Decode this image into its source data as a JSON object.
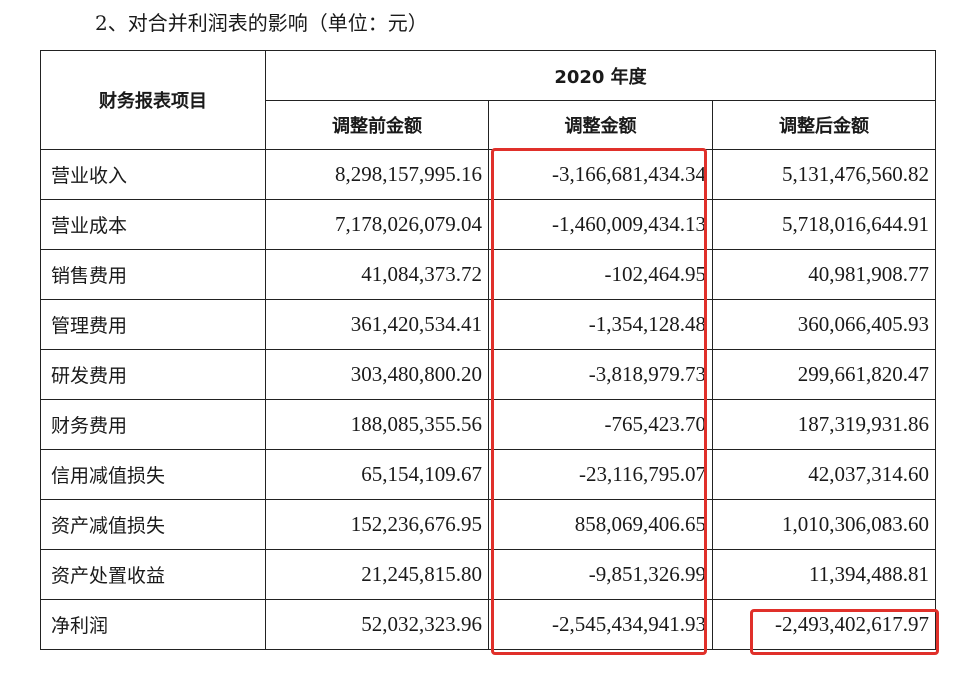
{
  "heading": "2、对合并利润表的影响（单位：元）",
  "table": {
    "item_header": "财务报表项目",
    "year_header": "2020 年度",
    "column_headers": [
      "调整前金额",
      "调整金额",
      "调整后金额"
    ],
    "rows": [
      {
        "item": "营业收入",
        "before": "8,298,157,995.16",
        "adjust": "-3,166,681,434.34",
        "after": "5,131,476,560.82"
      },
      {
        "item": "营业成本",
        "before": "7,178,026,079.04",
        "adjust": "-1,460,009,434.13",
        "after": "5,718,016,644.91"
      },
      {
        "item": "销售费用",
        "before": "41,084,373.72",
        "adjust": "-102,464.95",
        "after": "40,981,908.77"
      },
      {
        "item": "管理费用",
        "before": "361,420,534.41",
        "adjust": "-1,354,128.48",
        "after": "360,066,405.93"
      },
      {
        "item": "研发费用",
        "before": "303,480,800.20",
        "adjust": "-3,818,979.73",
        "after": "299,661,820.47"
      },
      {
        "item": "财务费用",
        "before": "188,085,355.56",
        "adjust": "-765,423.70",
        "after": "187,319,931.86"
      },
      {
        "item": "信用减值损失",
        "before": "65,154,109.67",
        "adjust": "-23,116,795.07",
        "after": "42,037,314.60"
      },
      {
        "item": "资产减值损失",
        "before": "152,236,676.95",
        "adjust": "858,069,406.65",
        "after": "1,010,306,083.60"
      },
      {
        "item": "资产处置收益",
        "before": "21,245,815.80",
        "adjust": "-9,851,326.99",
        "after": "11,394,488.81"
      },
      {
        "item": "净利润",
        "before": "52,032,323.96",
        "adjust": "-2,545,434,941.93",
        "after": "-2,493,402,617.97"
      }
    ]
  },
  "highlight_color": "#e0302a"
}
